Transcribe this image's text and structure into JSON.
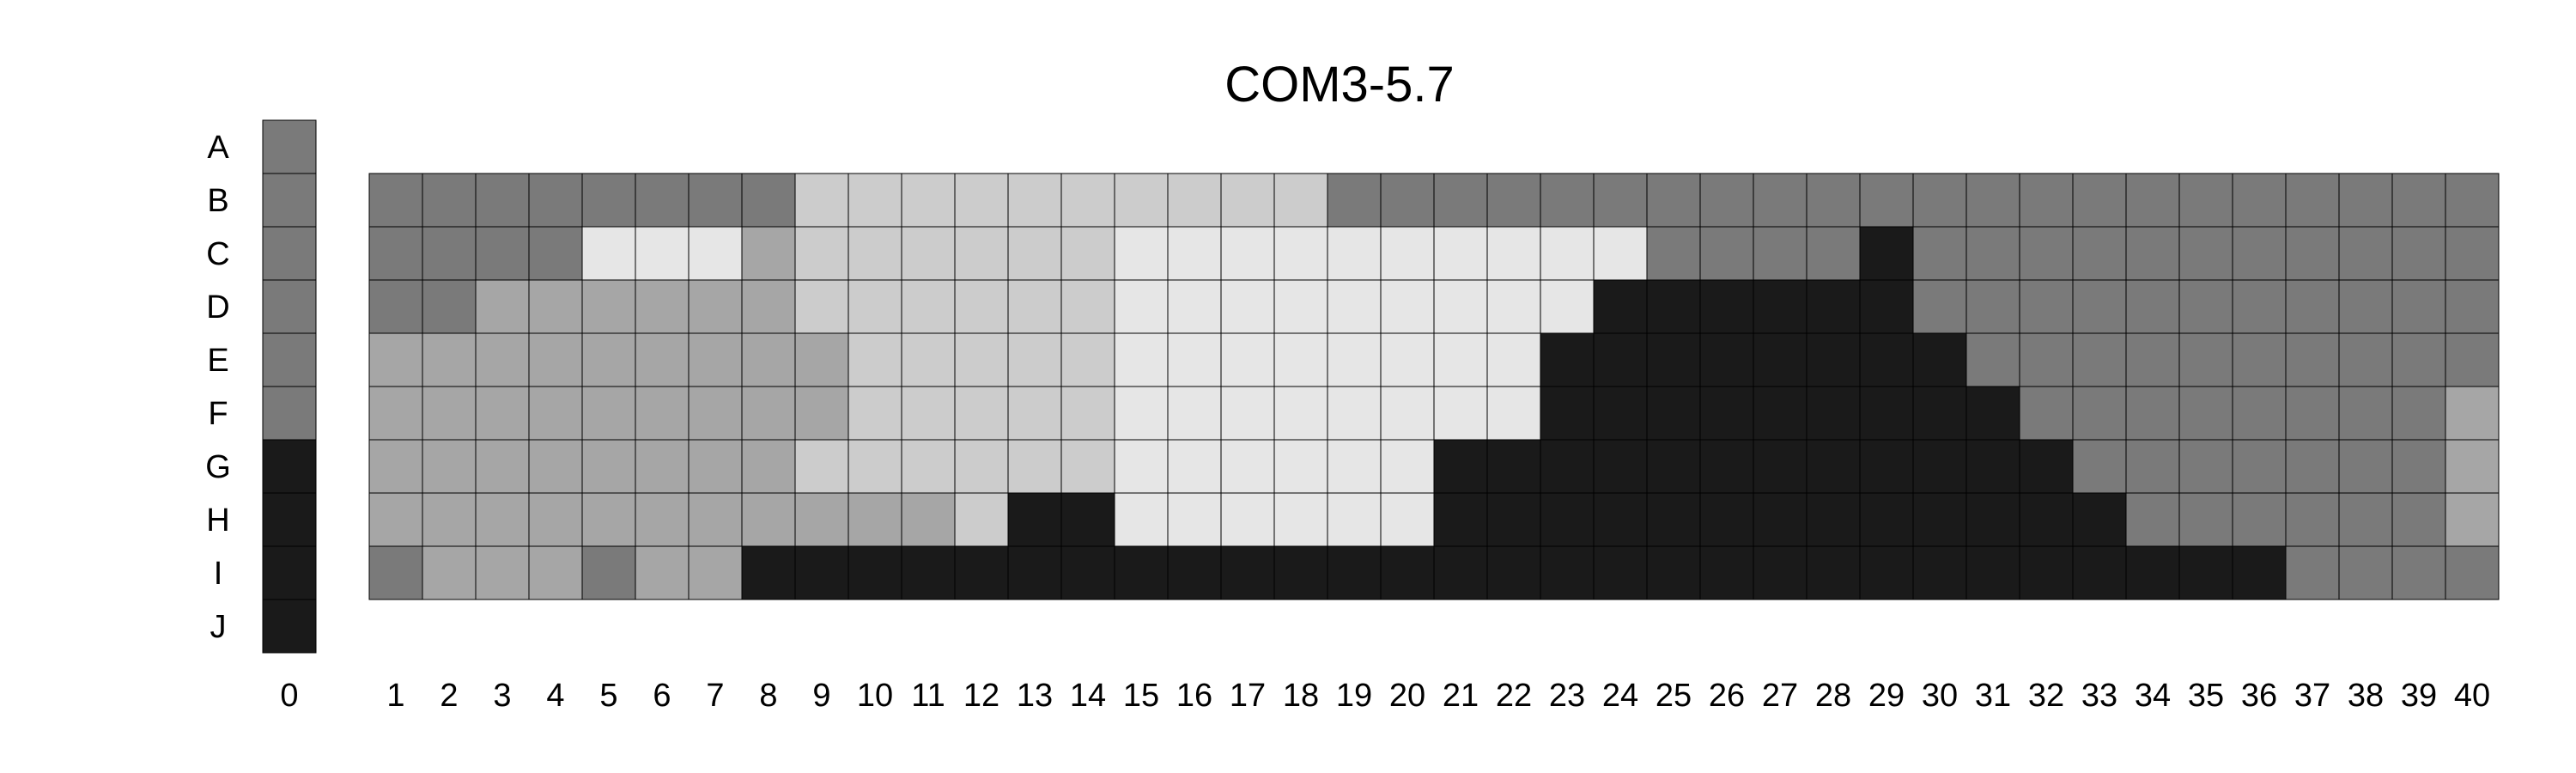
{
  "chart_data": {
    "type": "heatmap",
    "title": "COM3-5.7",
    "row_labels": [
      "A",
      "B",
      "C",
      "D",
      "E",
      "F",
      "G",
      "H",
      "I",
      "J"
    ],
    "reference_column": {
      "label": "0",
      "codes": [
        "M",
        "M",
        "M",
        "M",
        "M",
        "M",
        "K",
        "K",
        "K",
        "K"
      ]
    },
    "column_labels": [
      "1",
      "2",
      "3",
      "4",
      "5",
      "6",
      "7",
      "8",
      "9",
      "10",
      "11",
      "12",
      "13",
      "14",
      "15",
      "16",
      "17",
      "18",
      "19",
      "20",
      "21",
      "22",
      "23",
      "24",
      "25",
      "26",
      "27",
      "28",
      "29",
      "30",
      "31",
      "32",
      "33",
      "34",
      "35",
      "36",
      "37",
      "38",
      "39",
      "40"
    ],
    "grid_rows": [
      "B",
      "C",
      "D",
      "E",
      "F",
      "G",
      "H",
      "I"
    ],
    "grid": [
      "MMMMMMMMLLLLLLLLLLMMMMMMMMMMMMMMMMMMMMMM",
      "MMMMWWWDLLLLLLWWWWWWWWWWMMMMKMMMMMMMMMMM",
      "MMDDDDDDLLLLLLWWWWWWWWWKKKKKKMMMMMMMMMMM",
      "DDDDDDDDDLLLLLWWWWWWWWKKKKKKKKMMMMMMMMMM",
      "DDDDDDDDDLLLLLWWWWWWWWKKKKKKKKKMMMMMMMMD",
      "DDDDDDDDLLLLLLWWWWWWKKKKKKKKKKKKMMMMMMMD",
      "DDDDDDDDDDDLKKWWWWWWKKKKKKKKKKKKKMMMMMMD",
      "MDDDMDDKKKKKKKKKKKKKKKKKKKKKKKKKKKKKMMMM"
    ],
    "legend_colors": {
      "K": "#1a1a1a",
      "M": "#7a7a7a",
      "D": "#a6a6a6",
      "L": "#cccccc",
      "W": "#e6e6e6"
    },
    "legend": "none",
    "grid_lines": true
  }
}
